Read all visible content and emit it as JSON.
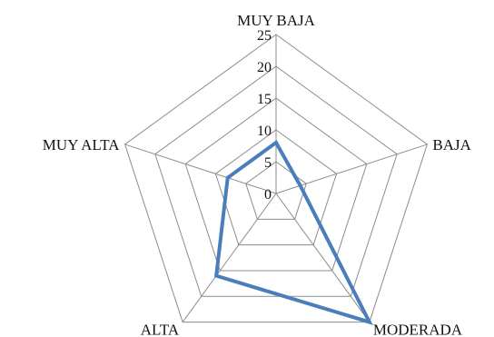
{
  "chart_data": {
    "type": "radar",
    "categories": [
      "MUY BAJA",
      "BAJA",
      "MODERADA",
      "ALTA",
      "MUY ALTA"
    ],
    "series": [
      {
        "values": [
          8,
          4,
          25,
          16,
          8
        ],
        "color": "#4A7EBB"
      }
    ],
    "rlim": [
      0,
      25
    ],
    "ticks": [
      "0",
      "5",
      "10",
      "15",
      "20",
      "25"
    ],
    "grid": true,
    "legend": "none"
  }
}
